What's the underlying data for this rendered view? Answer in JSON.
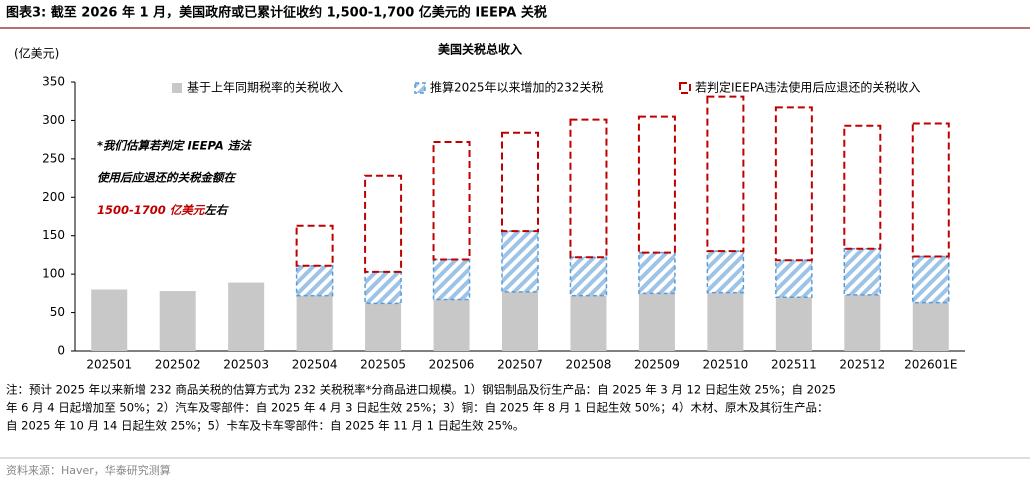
{
  "header": {
    "title": "图表3:  截至 2026 年 1 月，美国政府或已累计征收约 1,500-1,700 亿美元的 IEEPA 关税"
  },
  "chart_data": {
    "type": "stacked_bar",
    "title": "美国关税总收入",
    "y_label": "(亿美元)",
    "categories": [
      "202501",
      "202502",
      "202503",
      "202504",
      "202505",
      "202506",
      "202507",
      "202508",
      "202509",
      "202510",
      "202511",
      "202512",
      "202601E"
    ],
    "series": [
      {
        "name": "基于上年同期税率的关税收入",
        "color": "#c8c8c8",
        "style": "solid",
        "values": [
          80,
          78,
          89,
          72,
          62,
          67,
          77,
          72,
          75,
          76,
          70,
          73,
          63
        ]
      },
      {
        "name": "推算2025年以来增加的232关税",
        "color": "#5b9bd5",
        "style": "hatch",
        "values": [
          null,
          null,
          null,
          39,
          41,
          52,
          79,
          50,
          53,
          54,
          48,
          60,
          60
        ]
      },
      {
        "name": "若判定IEEPA违法使用后应退还的关税收入",
        "color": "#c00000",
        "style": "dashed",
        "values": [
          null,
          null,
          null,
          52,
          125,
          153,
          128,
          179,
          177,
          201,
          199,
          160,
          173
        ]
      }
    ],
    "ylim": [
      0,
      350
    ],
    "yticks": [
      0,
      50,
      100,
      150,
      200,
      250,
      300,
      350
    ],
    "annotation": [
      "*我们估算若判定 IEEPA 违法",
      "使用后应退还的关税金额在",
      "1500-1700 亿美元",
      "左右"
    ]
  },
  "notes": [
    "注：预计 2025 年以来新增 232 商品关税的估算方式为 232 关税税率*分商品进口规模。1）钢铝制品及衍生产品：自 2025 年 3 月 12 日起生效 25%；自 2025",
    "年 6 月 4 日起增加至 50%；2）汽车及零部件：自 2025 年 4 月 3 日起生效 25%；3）铜：自 2025 年 8 月 1 日起生效 50%；4）木材、原木及其衍生产品：",
    "自 2025 年 10 月 14 日起生效 25%；5）卡车及卡车零部件：自 2025 年 11 月 1 日起生效 25%。"
  ],
  "source": "资料来源：Haver，华泰研究测算"
}
